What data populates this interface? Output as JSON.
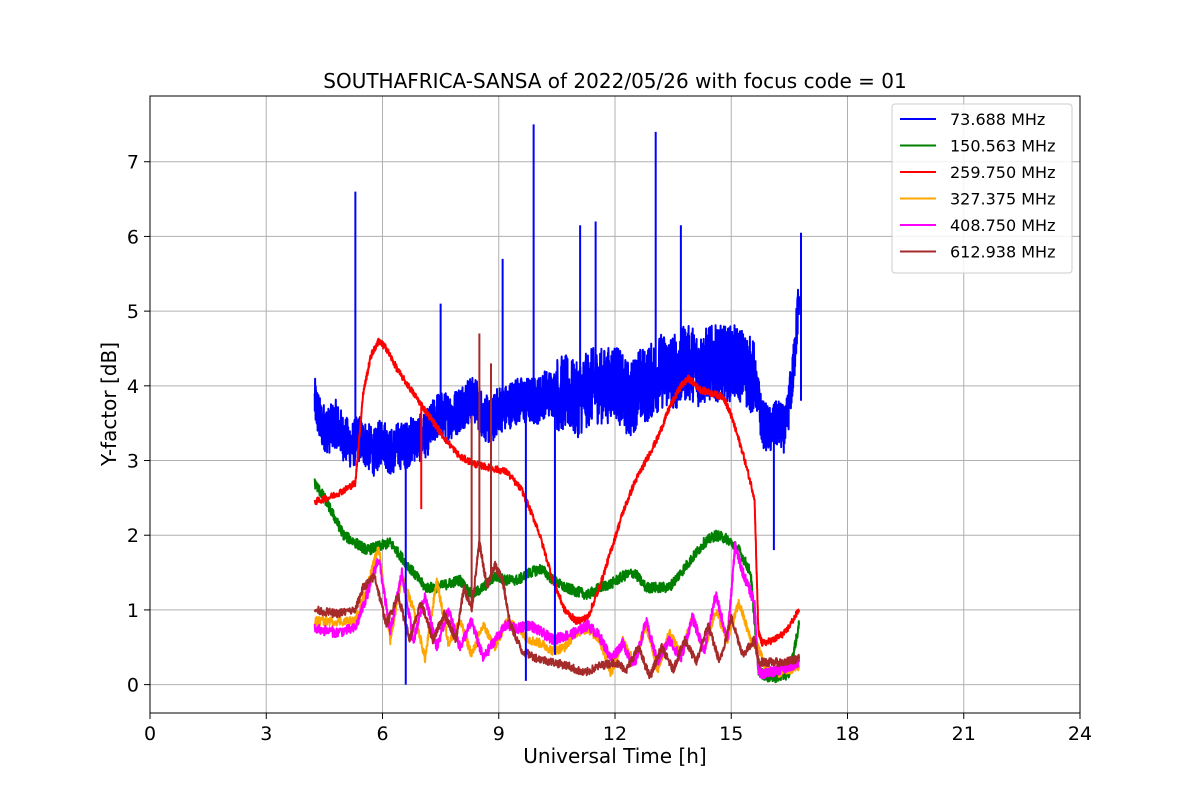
{
  "chart_data": {
    "type": "line",
    "title": "SOUTHAFRICA-SANSA of 2022/05/26 with focus code = 01",
    "xlabel": "Universal Time [h]",
    "ylabel": "Y-factor [dB]",
    "xlim": [
      0,
      24
    ],
    "ylim": [
      -0.38,
      7.88
    ],
    "xticks": [
      0,
      3,
      6,
      9,
      12,
      15,
      18,
      21,
      24
    ],
    "yticks": [
      0,
      1,
      2,
      3,
      4,
      5,
      6,
      7
    ],
    "grid": true,
    "legend_position": "top-right",
    "series": [
      {
        "name": " 73.688 MHz",
        "color": "#0000ff",
        "x": [
          4.25,
          4.4,
          4.6,
          4.8,
          5.0,
          5.2,
          5.4,
          5.6,
          5.8,
          6.0,
          6.2,
          6.4,
          6.6,
          6.8,
          7.0,
          7.2,
          7.4,
          7.6,
          7.8,
          8.0,
          8.2,
          8.4,
          8.6,
          8.8,
          9.0,
          9.2,
          9.4,
          9.6,
          9.8,
          10.0,
          10.2,
          10.4,
          10.6,
          10.8,
          11.0,
          11.2,
          11.4,
          11.6,
          11.8,
          12.0,
          12.2,
          12.4,
          12.6,
          12.8,
          13.0,
          13.2,
          13.4,
          13.6,
          13.8,
          14.0,
          14.2,
          14.4,
          14.6,
          14.8,
          15.0,
          15.2,
          15.4,
          15.6,
          15.8,
          16.0,
          16.2,
          16.4,
          16.6,
          16.75
        ],
        "y": [
          3.8,
          3.5,
          3.4,
          3.5,
          3.3,
          3.2,
          3.3,
          3.2,
          3.1,
          3.3,
          3.1,
          3.2,
          3.2,
          3.3,
          3.3,
          3.4,
          3.6,
          3.6,
          3.6,
          3.7,
          3.8,
          3.8,
          3.6,
          3.5,
          3.7,
          3.7,
          3.8,
          3.8,
          3.8,
          3.8,
          3.9,
          3.9,
          3.9,
          3.9,
          3.8,
          3.9,
          4.0,
          4.0,
          4.0,
          4.1,
          3.9,
          3.8,
          4.0,
          4.0,
          4.1,
          4.2,
          4.2,
          4.2,
          4.3,
          4.3,
          4.2,
          4.3,
          4.3,
          4.3,
          4.3,
          4.3,
          4.2,
          4.1,
          3.5,
          3.4,
          3.5,
          3.4,
          4.2,
          5.2
        ]
      },
      {
        "name": "150.563 MHz",
        "color": "#008000",
        "x": [
          4.25,
          4.5,
          4.8,
          5.0,
          5.3,
          5.6,
          5.9,
          6.2,
          6.5,
          6.8,
          7.1,
          7.4,
          7.7,
          8.0,
          8.3,
          8.6,
          8.9,
          9.2,
          9.5,
          9.8,
          10.1,
          10.4,
          10.7,
          11.0,
          11.3,
          11.6,
          11.9,
          12.2,
          12.5,
          12.8,
          13.1,
          13.4,
          13.7,
          14.0,
          14.3,
          14.6,
          14.9,
          15.2,
          15.5,
          15.7,
          15.9,
          16.2,
          16.5,
          16.75
        ],
        "y": [
          2.7,
          2.5,
          2.2,
          2.0,
          1.9,
          1.8,
          1.85,
          1.9,
          1.7,
          1.5,
          1.3,
          1.3,
          1.35,
          1.4,
          1.2,
          1.3,
          1.45,
          1.4,
          1.4,
          1.5,
          1.55,
          1.4,
          1.3,
          1.25,
          1.2,
          1.3,
          1.35,
          1.45,
          1.5,
          1.3,
          1.3,
          1.3,
          1.5,
          1.7,
          1.9,
          2.0,
          1.95,
          1.8,
          1.5,
          0.2,
          0.1,
          0.1,
          0.15,
          0.8
        ]
      },
      {
        "name": "259.750 MHz",
        "color": "#ff0000",
        "x": [
          4.25,
          4.6,
          5.0,
          5.3,
          5.5,
          5.7,
          5.9,
          6.1,
          6.4,
          6.8,
          7.2,
          7.6,
          8.0,
          8.4,
          8.8,
          9.2,
          9.6,
          10.0,
          10.4,
          10.7,
          11.0,
          11.3,
          11.6,
          11.9,
          12.2,
          12.5,
          12.8,
          13.1,
          13.4,
          13.7,
          13.9,
          14.2,
          14.5,
          14.8,
          15.0,
          15.3,
          15.6,
          15.7,
          15.8,
          16.1,
          16.4,
          16.75
        ],
        "y": [
          2.45,
          2.5,
          2.6,
          2.7,
          3.9,
          4.4,
          4.6,
          4.5,
          4.2,
          3.9,
          3.6,
          3.3,
          3.05,
          2.95,
          2.9,
          2.85,
          2.6,
          2.1,
          1.4,
          1.0,
          0.85,
          0.9,
          1.3,
          1.8,
          2.3,
          2.7,
          3.0,
          3.3,
          3.7,
          4.0,
          4.1,
          3.95,
          3.9,
          3.85,
          3.6,
          3.1,
          2.5,
          0.7,
          0.55,
          0.6,
          0.7,
          1.0
        ]
      },
      {
        "name": "327.375 MHz",
        "color": "#ffa500",
        "x": [
          4.25,
          4.8,
          5.3,
          5.6,
          5.9,
          6.2,
          6.5,
          6.8,
          7.1,
          7.4,
          7.7,
          8.0,
          8.3,
          8.6,
          8.9,
          9.2,
          9.5,
          9.8,
          10.1,
          10.4,
          10.7,
          11.0,
          11.3,
          11.6,
          11.9,
          12.2,
          12.5,
          12.8,
          13.1,
          13.4,
          13.7,
          14.0,
          14.3,
          14.6,
          14.9,
          15.2,
          15.5,
          15.7,
          15.9,
          16.2,
          16.5,
          16.75
        ],
        "y": [
          0.85,
          0.85,
          0.85,
          1.3,
          1.85,
          0.6,
          1.45,
          1.0,
          0.35,
          1.4,
          0.55,
          0.85,
          0.4,
          0.8,
          0.5,
          0.85,
          0.75,
          0.6,
          0.55,
          0.45,
          0.5,
          0.7,
          0.75,
          0.6,
          0.15,
          0.6,
          0.3,
          0.8,
          0.2,
          0.7,
          0.4,
          0.9,
          0.45,
          1.0,
          0.6,
          1.1,
          0.6,
          0.5,
          0.2,
          0.15,
          0.2,
          0.25
        ]
      },
      {
        "name": "408.750 MHz",
        "color": "#ff00ff",
        "x": [
          4.25,
          4.8,
          5.3,
          5.6,
          5.9,
          6.2,
          6.5,
          6.8,
          7.1,
          7.4,
          7.7,
          8.0,
          8.3,
          8.6,
          8.9,
          9.2,
          9.5,
          9.8,
          10.1,
          10.4,
          10.7,
          11.0,
          11.3,
          11.6,
          11.9,
          12.2,
          12.5,
          12.8,
          13.1,
          13.4,
          13.7,
          14.0,
          14.3,
          14.6,
          14.9,
          15.1,
          15.3,
          15.6,
          15.7,
          15.9,
          16.2,
          16.5,
          16.75
        ],
        "y": [
          0.75,
          0.7,
          0.75,
          1.2,
          1.7,
          0.7,
          1.5,
          0.6,
          1.2,
          0.5,
          1.0,
          0.5,
          0.85,
          0.35,
          0.6,
          0.8,
          0.75,
          0.8,
          0.7,
          0.6,
          0.65,
          0.7,
          0.8,
          0.65,
          0.35,
          0.55,
          0.25,
          0.85,
          0.3,
          0.6,
          0.35,
          0.9,
          0.45,
          1.2,
          0.6,
          1.85,
          1.5,
          1.1,
          0.15,
          0.15,
          0.2,
          0.25,
          0.3
        ]
      },
      {
        "name": "612.938 MHz",
        "color": "#a52a2a",
        "x": [
          4.25,
          4.8,
          5.3,
          5.5,
          5.8,
          6.1,
          6.4,
          6.7,
          7.0,
          7.3,
          7.6,
          7.9,
          8.1,
          8.3,
          8.5,
          8.7,
          8.9,
          9.1,
          9.3,
          9.6,
          10.0,
          10.4,
          10.8,
          11.2,
          11.6,
          12.0,
          12.3,
          12.6,
          12.9,
          13.2,
          13.5,
          13.8,
          14.1,
          14.4,
          14.7,
          15.0,
          15.3,
          15.6,
          15.7,
          16.0,
          16.4,
          16.75
        ],
        "y": [
          1.0,
          0.95,
          1.0,
          1.3,
          1.45,
          0.8,
          1.2,
          0.6,
          1.1,
          0.6,
          0.95,
          0.6,
          1.3,
          1.0,
          1.9,
          1.3,
          1.6,
          1.4,
          0.8,
          0.45,
          0.35,
          0.3,
          0.25,
          0.15,
          0.25,
          0.3,
          0.2,
          0.5,
          0.1,
          0.5,
          0.2,
          0.6,
          0.3,
          0.8,
          0.3,
          0.9,
          0.4,
          0.6,
          0.3,
          0.3,
          0.3,
          0.35
        ]
      }
    ],
    "spikes": [
      {
        "series": 0,
        "x": 5.3,
        "y": 6.6
      },
      {
        "series": 0,
        "x": 7.5,
        "y": 5.1
      },
      {
        "series": 0,
        "x": 9.1,
        "y": 5.7
      },
      {
        "series": 0,
        "x": 9.9,
        "y": 7.5
      },
      {
        "series": 0,
        "x": 11.1,
        "y": 6.15
      },
      {
        "series": 0,
        "x": 11.5,
        "y": 6.2
      },
      {
        "series": 0,
        "x": 13.05,
        "y": 7.4
      },
      {
        "series": 0,
        "x": 13.7,
        "y": 6.15
      },
      {
        "series": 0,
        "x": 16.8,
        "y": 6.05
      },
      {
        "series": 0,
        "x": 6.6,
        "y": 0.0
      },
      {
        "series": 0,
        "x": 9.7,
        "y": 0.05
      },
      {
        "series": 0,
        "x": 10.45,
        "y": 0.4
      },
      {
        "series": 0,
        "x": 16.1,
        "y": 1.8
      },
      {
        "series": 5,
        "x": 8.5,
        "y": 4.7
      },
      {
        "series": 5,
        "x": 8.3,
        "y": 3.6
      },
      {
        "series": 5,
        "x": 8.8,
        "y": 4.3
      },
      {
        "series": 2,
        "x": 7.0,
        "y": 2.35
      }
    ]
  }
}
